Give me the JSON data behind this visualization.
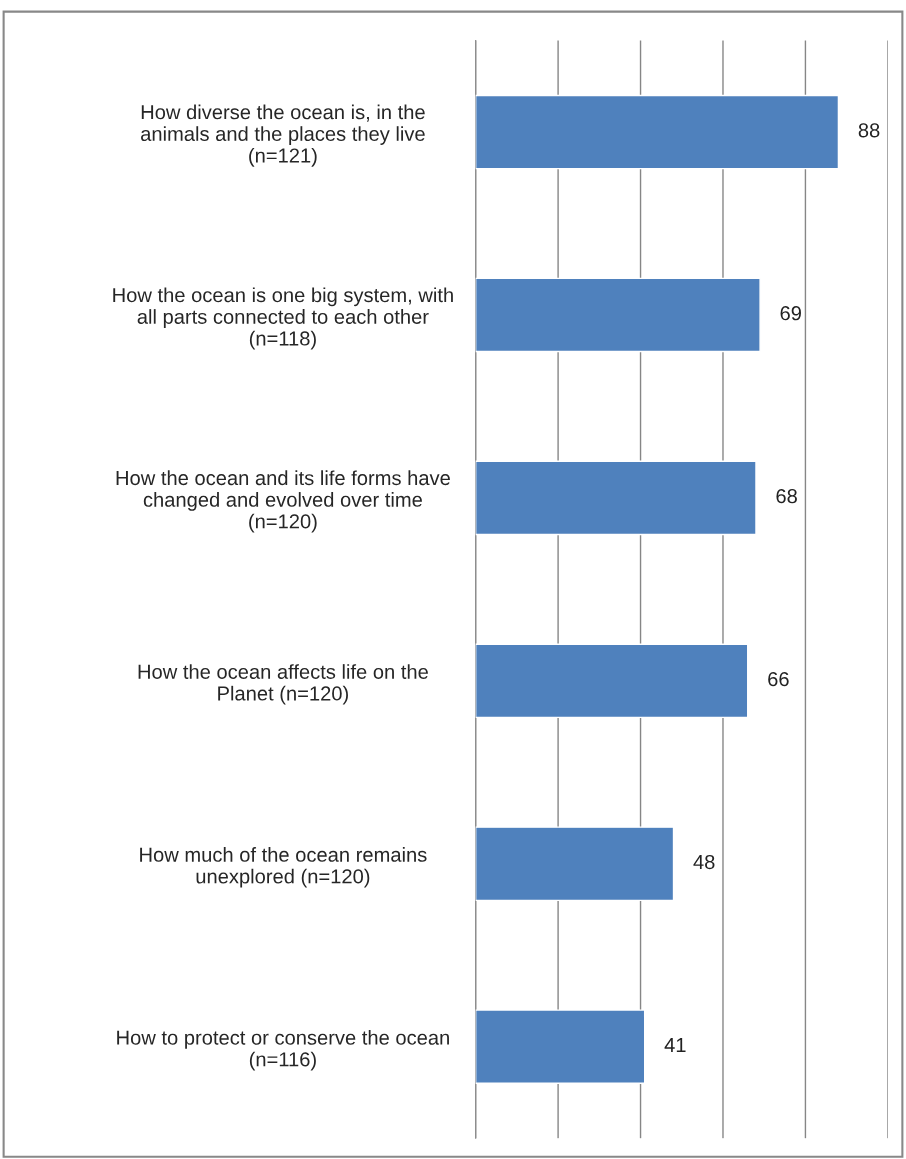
{
  "chart_data": {
    "type": "bar",
    "orientation": "horizontal",
    "categories": [
      "How diverse the ocean is, in the\nanimals and the places they live\n(n=121)",
      "How the ocean is one big system, with\nall parts connected to each other\n(n=118)",
      "How the ocean and its life forms have\nchanged and evolved over time\n(n=120)",
      "How the ocean affects life on the\nPlanet (n=120)",
      "How much of the ocean remains\nunexplored (n=120)",
      "How to protect or conserve the ocean\n(n=116)"
    ],
    "values": [
      88,
      69,
      68,
      66,
      48,
      41
    ],
    "color": "#4f81bd",
    "xlim": [
      0,
      100
    ],
    "xticks": [
      {
        "value": 0,
        "label": null
      },
      {
        "value": 20,
        "label": null
      },
      {
        "value": 40,
        "label": null
      },
      {
        "value": 60,
        "label": null
      },
      {
        "value": 80,
        "label": null
      },
      {
        "value": 100,
        "label": null
      }
    ],
    "grid": "x",
    "data_labels": true,
    "tick_labels": "y"
  }
}
